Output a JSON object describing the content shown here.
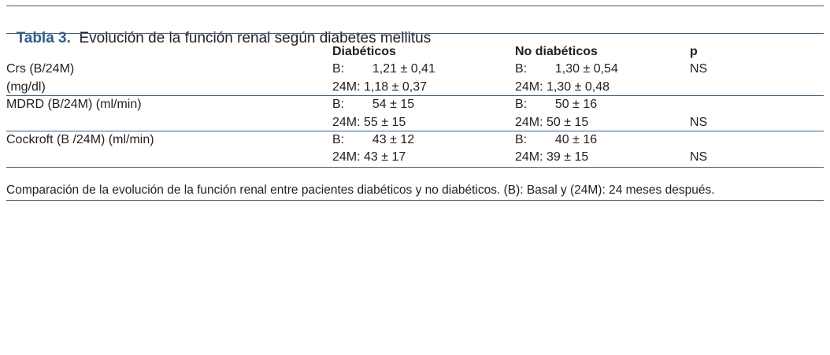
{
  "title": {
    "label": "Tabla 3.",
    "text": "Evolución de la función renal según diabetes mellitus"
  },
  "headers": {
    "col1": "Diabéticos",
    "col2": "No diabéticos",
    "col3": "p"
  },
  "rows": [
    {
      "param": [
        "Crs (B/24M)",
        "(mg/dl)"
      ],
      "diab": [
        [
          "B:",
          "1,21 ± 0,41"
        ],
        [
          "24M:",
          "1,18 ± 0,37"
        ]
      ],
      "nodiab": [
        [
          "B:",
          "1,30 ± 0,54"
        ],
        [
          "24M:",
          "1,30 ± 0,48"
        ]
      ],
      "p": [
        "NS",
        ""
      ]
    },
    {
      "param": [
        "MDRD (B/24M) (ml/min)",
        ""
      ],
      "diab": [
        [
          "B:",
          "54 ± 15"
        ],
        [
          "24M:",
          "55 ± 15"
        ]
      ],
      "nodiab": [
        [
          "B:",
          "50 ± 16"
        ],
        [
          "24M:",
          "50 ± 15"
        ]
      ],
      "p": [
        "",
        "NS"
      ]
    },
    {
      "param": [
        "Cockroft (B /24M) (ml/min)",
        ""
      ],
      "diab": [
        [
          "B:",
          "43 ± 12"
        ],
        [
          "24M:",
          "43 ± 17"
        ]
      ],
      "nodiab": [
        [
          "B:",
          "40 ± 16"
        ],
        [
          "24M:",
          "39 ± 15"
        ]
      ],
      "p": [
        "",
        "NS"
      ]
    }
  ],
  "footnote": "Comparación de la evolución de la función renal entre pacientes diabéticos y no diabéticos. (B): Basal y (24M): 24 meses después."
}
